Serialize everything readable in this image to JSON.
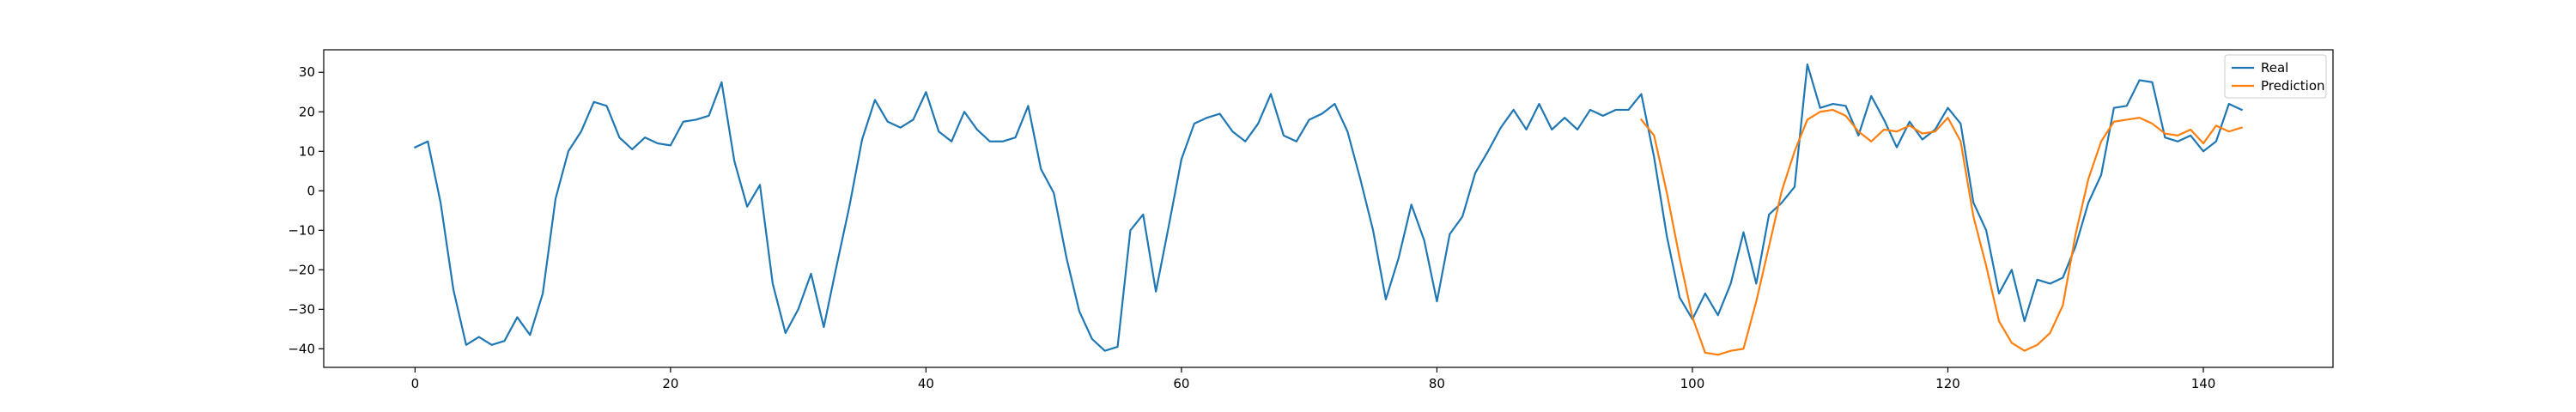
{
  "chart_data": {
    "type": "line",
    "title": "",
    "xlabel": "",
    "ylabel": "",
    "xlim": [
      -7.15,
      150.15
    ],
    "ylim": [
      -44.7,
      35.7
    ],
    "xticks": [
      0,
      20,
      40,
      60,
      80,
      100,
      120,
      140
    ],
    "yticks": [
      -40,
      -30,
      -20,
      -10,
      0,
      10,
      20,
      30
    ],
    "grid": false,
    "legend_position": "top-right",
    "series": [
      {
        "name": "Real",
        "color": "#1f77b4",
        "x_start": 0,
        "values": [
          11,
          12.5,
          -3,
          -25,
          -39,
          -37,
          -39,
          -38,
          -32,
          -36.5,
          -26,
          -2,
          10,
          15,
          22.5,
          21.5,
          13.5,
          10.5,
          13.5,
          12,
          11.5,
          17.5,
          18,
          19,
          27.5,
          7.5,
          -4,
          1.5,
          -23.5,
          -36,
          -30,
          -21,
          -34.5,
          -19,
          -4,
          13,
          23,
          17.5,
          16,
          18,
          25,
          15,
          12.5,
          20,
          15.5,
          12.5,
          12.5,
          13.5,
          21.5,
          5.5,
          -0.5,
          -17,
          -30.5,
          -37.5,
          -40.5,
          -39.5,
          -10,
          -6,
          -25.5,
          -9,
          8,
          17,
          18.5,
          19.5,
          15,
          12.5,
          17,
          24.5,
          14,
          12.5,
          18,
          19.5,
          22,
          15,
          3,
          -10,
          -27.5,
          -17,
          -3.5,
          -12.5,
          -28,
          -11,
          -6.5,
          4.5,
          10,
          16,
          20.5,
          15.5,
          22,
          15.5,
          18.5,
          15.5,
          20.5,
          19,
          20.5,
          20.5,
          24.5,
          8.5,
          -11.5,
          -27,
          -32.5,
          -26,
          -31.5,
          -23.5,
          -10.5,
          -23.5,
          -6,
          -3,
          1,
          32,
          21,
          22,
          21.5,
          14,
          24,
          18,
          11,
          17.5,
          13,
          15.5,
          21,
          17,
          -3,
          -10,
          -26,
          -20,
          -33,
          -22.5,
          -23.5,
          -22,
          -14,
          -3,
          4,
          21,
          21.5,
          28,
          27.5,
          13.5,
          12.5,
          14,
          10,
          12.5,
          22,
          20.5
        ]
      },
      {
        "name": "Prediction",
        "color": "#ff7f0e",
        "x_start": 96,
        "values": [
          18,
          14,
          -0.5,
          -17,
          -32,
          -41,
          -41.5,
          -40.5,
          -40,
          -28,
          -14,
          0,
          10,
          18,
          20,
          20.5,
          19,
          15,
          12.5,
          15.5,
          15,
          16.5,
          14.5,
          15,
          18.5,
          12.5,
          -6.5,
          -19,
          -33,
          -38.5,
          -40.5,
          -39,
          -36,
          -29,
          -11,
          3,
          12.5,
          17.5,
          18,
          18.5,
          17,
          14.5,
          14,
          15.5,
          12,
          16.5,
          15,
          16
        ]
      }
    ]
  }
}
